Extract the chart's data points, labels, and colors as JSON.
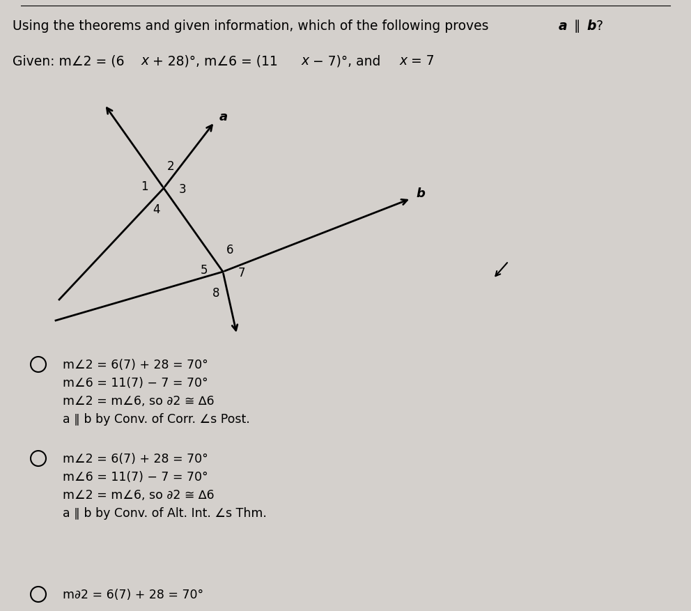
{
  "bg_color": "#d4d0cc",
  "title_main": "Using the theorems and given information, which of the following proves ",
  "title_italic_a": "a",
  "title_parallel": " ∥ ",
  "title_italic_b": "b",
  "title_end": "?",
  "given_text": "Given: m∠2 = (6x + 28)°, m∠6 = (11x − 7)°, and x = 7",
  "option1_lines": [
    "m∠2 = 6(7) + 28 = 70°",
    "m∠6 = 11(7) − 7 = 70°",
    "m∠2 = m∠6, so ∂2 ≅ ∆6",
    "a ∥ b by Conv. of Corr. ∠s Post."
  ],
  "option2_lines": [
    "m∠2 = 6(7) + 28 = 70°",
    "m∠6 = 11(7) − 7 = 70°",
    "m∠2 = m∠6, so ∂2 ≅ ∆6",
    "a ∥ b by Conv. of Alt. Int. ∠s Thm."
  ],
  "option3_partial": "m∂2 = 6(7) + 28 = 70°"
}
